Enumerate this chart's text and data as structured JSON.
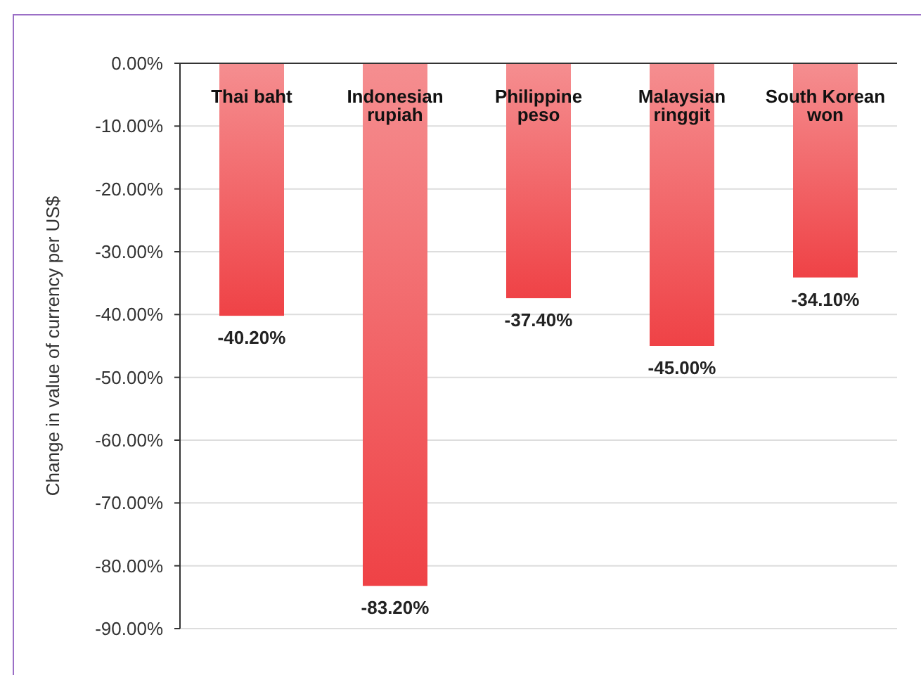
{
  "chart_data": {
    "type": "bar",
    "ylabel": "Change in value of currency per US$",
    "categories": [
      "Thai baht",
      "Indonesian rupiah",
      "Philippine peso",
      "Malaysian ringgit",
      "South Korean won"
    ],
    "values": [
      -40.2,
      -83.2,
      -37.4,
      -45.0,
      -34.1
    ],
    "color": "#ef4246",
    "value_labels": [
      "-40.20%",
      "-83.20%",
      "-37.40%",
      "-45.00%",
      "-34.10%"
    ],
    "ylim": [
      -90,
      0
    ],
    "yticks": [
      {
        "value": 0,
        "label": "0.00%"
      },
      {
        "value": -10,
        "label": "-10.00%"
      },
      {
        "value": -20,
        "label": "-20.00%"
      },
      {
        "value": -30,
        "label": "-30.00%"
      },
      {
        "value": -40,
        "label": "-40.00%"
      },
      {
        "value": -50,
        "label": "-50.00%"
      },
      {
        "value": -60,
        "label": "-60.00%"
      },
      {
        "value": -70,
        "label": "-70.00%"
      },
      {
        "value": -80,
        "label": "-80.00%"
      },
      {
        "value": -90,
        "label": "-90.00%"
      }
    ],
    "grid": "y"
  }
}
